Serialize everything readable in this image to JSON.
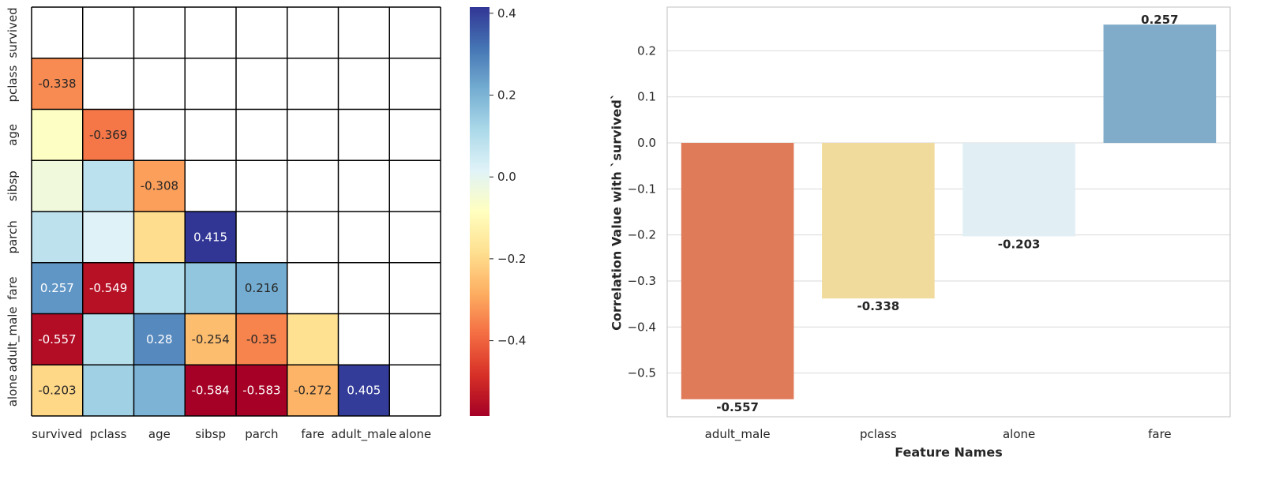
{
  "chart_data": [
    {
      "type": "heatmap",
      "variables": [
        "survived",
        "pclass",
        "age",
        "sibsp",
        "parch",
        "fare",
        "adult_male",
        "alone"
      ],
      "mask": "upper-triangle-including-diagonal",
      "cells": [
        {
          "row": "pclass",
          "col": "survived",
          "value": -0.338,
          "label": "-0.338"
        },
        {
          "row": "age",
          "col": "survived",
          "value": -0.077,
          "label": ""
        },
        {
          "row": "age",
          "col": "pclass",
          "value": -0.369,
          "label": "-0.369"
        },
        {
          "row": "sibsp",
          "col": "survived",
          "value": -0.035,
          "label": ""
        },
        {
          "row": "sibsp",
          "col": "pclass",
          "value": 0.083,
          "label": ""
        },
        {
          "row": "sibsp",
          "col": "age",
          "value": -0.308,
          "label": "-0.308"
        },
        {
          "row": "parch",
          "col": "survived",
          "value": 0.082,
          "label": ""
        },
        {
          "row": "parch",
          "col": "pclass",
          "value": 0.018,
          "label": ""
        },
        {
          "row": "parch",
          "col": "age",
          "value": -0.189,
          "label": ""
        },
        {
          "row": "parch",
          "col": "sibsp",
          "value": 0.415,
          "label": "0.415"
        },
        {
          "row": "fare",
          "col": "survived",
          "value": 0.257,
          "label": "0.257"
        },
        {
          "row": "fare",
          "col": "pclass",
          "value": -0.549,
          "label": "-0.549"
        },
        {
          "row": "fare",
          "col": "age",
          "value": 0.096,
          "label": ""
        },
        {
          "row": "fare",
          "col": "sibsp",
          "value": 0.16,
          "label": ""
        },
        {
          "row": "fare",
          "col": "parch",
          "value": 0.216,
          "label": "0.216"
        },
        {
          "row": "adult_male",
          "col": "survived",
          "value": -0.557,
          "label": "-0.557"
        },
        {
          "row": "adult_male",
          "col": "pclass",
          "value": 0.094,
          "label": ""
        },
        {
          "row": "adult_male",
          "col": "age",
          "value": 0.28,
          "label": "0.28"
        },
        {
          "row": "adult_male",
          "col": "sibsp",
          "value": -0.254,
          "label": "-0.254"
        },
        {
          "row": "adult_male",
          "col": "parch",
          "value": -0.35,
          "label": "-0.35"
        },
        {
          "row": "adult_male",
          "col": "fare",
          "value": -0.182,
          "label": ""
        },
        {
          "row": "alone",
          "col": "survived",
          "value": -0.203,
          "label": "-0.203"
        },
        {
          "row": "alone",
          "col": "pclass",
          "value": 0.136,
          "label": ""
        },
        {
          "row": "alone",
          "col": "age",
          "value": 0.199,
          "label": ""
        },
        {
          "row": "alone",
          "col": "sibsp",
          "value": -0.584,
          "label": "-0.584"
        },
        {
          "row": "alone",
          "col": "parch",
          "value": -0.583,
          "label": "-0.583"
        },
        {
          "row": "alone",
          "col": "fare",
          "value": -0.272,
          "label": "-0.272"
        },
        {
          "row": "alone",
          "col": "adult_male",
          "value": 0.405,
          "label": "0.405"
        }
      ],
      "colormap": "RdYlBu",
      "vmin": -0.584,
      "vmax": 0.415,
      "colorbar_ticks": [
        "0.4",
        "0.2",
        "0.0",
        "−0.2",
        "−0.4"
      ],
      "colorbar_tick_values": [
        0.4,
        0.2,
        0.0,
        -0.2,
        -0.4
      ],
      "grid_line_color": "#000000"
    },
    {
      "type": "bar",
      "categories": [
        "adult_male",
        "pclass",
        "alone",
        "fare"
      ],
      "values": [
        -0.557,
        -0.338,
        -0.203,
        0.257
      ],
      "value_labels": [
        "-0.557",
        "-0.338",
        "-0.203",
        "0.257"
      ],
      "colors": [
        "#e07b5a",
        "#f1db9c",
        "#e1eff5",
        "#80abc9"
      ],
      "xlabel": "Feature Names",
      "ylabel": "Correlation Value with `survived`",
      "ylim": [
        -0.595,
        0.295
      ],
      "yticks": [
        "0.2",
        "0.1",
        "0.0",
        "−0.1",
        "−0.2",
        "−0.3",
        "−0.4",
        "−0.5"
      ],
      "ytick_values": [
        0.2,
        0.1,
        0.0,
        -0.1,
        -0.2,
        -0.3,
        -0.4,
        -0.5
      ],
      "grid": "horizontal"
    }
  ]
}
